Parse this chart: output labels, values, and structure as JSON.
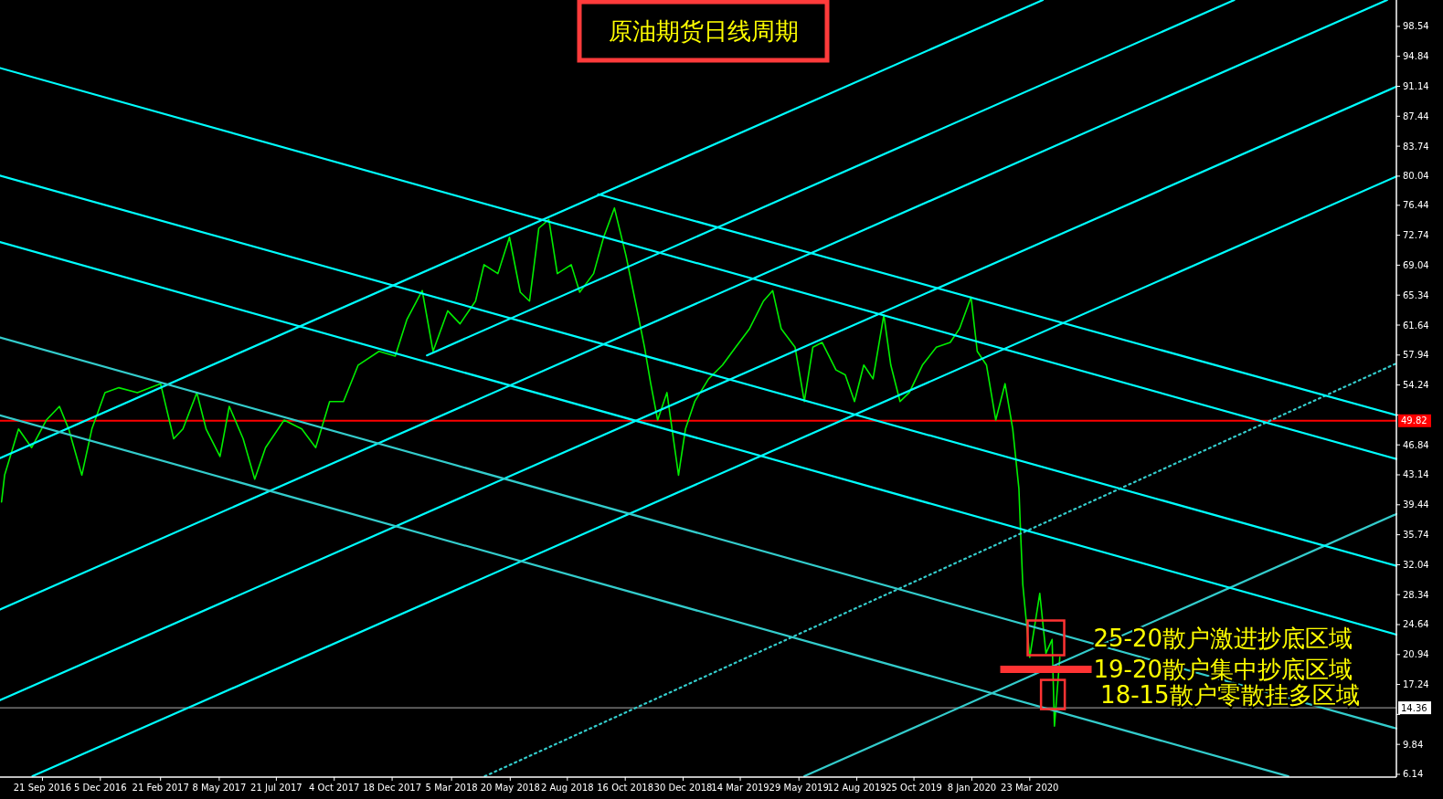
{
  "chart_data": {
    "type": "line",
    "title": "原油期货日线周期",
    "xlim": [
      "2016-07-28",
      "2021-07-11"
    ],
    "ylim": [
      5.8,
      101.8
    ],
    "xticks": [
      {
        "value": "2016-09-21",
        "label": "21 Sep 2016"
      },
      {
        "value": "2016-12-05",
        "label": "5 Dec 2016"
      },
      {
        "value": "2017-02-21",
        "label": "21 Feb 2017"
      },
      {
        "value": "2017-05-08",
        "label": "8 May 2017"
      },
      {
        "value": "2017-07-21",
        "label": "21 Jul 2017"
      },
      {
        "value": "2017-10-04",
        "label": "4 Oct 2017"
      },
      {
        "value": "2017-12-18",
        "label": "18 Dec 2017"
      },
      {
        "value": "2018-03-05",
        "label": "5 Mar 2018"
      },
      {
        "value": "2018-05-20",
        "label": "20 May 2018"
      },
      {
        "value": "2018-08-02",
        "label": "2 Aug 2018"
      },
      {
        "value": "2018-10-16",
        "label": "16 Oct 2018"
      },
      {
        "value": "2018-12-30",
        "label": "30 Dec 2018"
      },
      {
        "value": "2019-03-14",
        "label": "14 Mar 2019"
      },
      {
        "value": "2019-05-29",
        "label": "29 May 2019"
      },
      {
        "value": "2019-08-12",
        "label": "12 Aug 2019"
      },
      {
        "value": "2019-10-25",
        "label": "25 Oct 2019"
      },
      {
        "value": "2020-01-08",
        "label": "8 Jan 2020"
      },
      {
        "value": "2020-03-23",
        "label": "23 Mar 2020"
      }
    ],
    "yticks": [
      6.14,
      9.84,
      {
        "value": 13.54,
        "label": null
      },
      17.24,
      20.94,
      24.64,
      28.34,
      32.04,
      35.74,
      39.44,
      43.14,
      46.84,
      {
        "value": 50.54,
        "label": null
      },
      54.24,
      57.94,
      61.64,
      65.34,
      69.04,
      72.74,
      76.44,
      80.04,
      83.74,
      87.44,
      91.14,
      94.84,
      98.54
    ],
    "grid": false,
    "ref_lines": [
      {
        "axis": "y",
        "value": 49.82,
        "label": "49.82",
        "color": "#ff0000"
      },
      {
        "axis": "y",
        "value": 14.36,
        "label": "14.36",
        "color": "#b0b0b0"
      }
    ],
    "annotations": [
      {
        "text": "25-20散户激进抄底区域",
        "x": "2020-04-13",
        "y": 23.0
      },
      {
        "text": "19-20散户集中抄底区域",
        "x": "2020-04-13",
        "y": 19.1
      },
      {
        "text": "18-15散户零散挂多区域",
        "x": "2020-04-22",
        "y": 16.0
      }
    ],
    "series": [
      {
        "type": "line",
        "color": "#00ee00",
        "x": [
          "2016-07-30",
          "2016-08-03",
          "2016-08-21",
          "2016-09-07",
          "2016-09-26",
          "2016-10-13",
          "2016-10-25",
          "2016-11-11",
          "2016-11-24",
          "2016-12-11",
          "2016-12-29",
          "2017-01-22",
          "2017-02-21",
          "2017-03-10",
          "2017-03-22",
          "2017-04-09",
          "2017-04-21",
          "2017-05-09",
          "2017-05-21",
          "2017-06-08",
          "2017-06-23",
          "2017-07-07",
          "2017-07-31",
          "2017-08-23",
          "2017-09-10",
          "2017-09-28",
          "2017-10-16",
          "2017-11-04",
          "2017-12-01",
          "2017-12-22",
          "2018-01-06",
          "2018-01-26",
          "2018-02-09",
          "2018-02-28",
          "2018-03-16",
          "2018-04-05",
          "2018-04-16",
          "2018-05-04",
          "2018-05-19",
          "2018-06-02",
          "2018-06-14",
          "2018-06-26",
          "2018-07-09",
          "2018-07-20",
          "2018-08-07",
          "2018-08-18",
          "2018-09-05",
          "2018-09-18",
          "2018-10-02",
          "2018-10-17",
          "2018-10-29",
          "2018-11-10",
          "2018-11-18",
          "2018-11-27",
          "2018-12-09",
          "2018-12-24",
          "2019-01-02",
          "2019-01-14",
          "2019-02-01",
          "2019-02-19",
          "2019-03-08",
          "2019-03-26",
          "2019-04-13",
          "2019-04-25",
          "2019-05-06",
          "2019-05-24",
          "2019-06-05",
          "2019-06-16",
          "2019-06-28",
          "2019-07-16",
          "2019-07-28",
          "2019-08-09",
          "2019-08-21",
          "2019-09-02",
          "2019-09-16",
          "2019-09-25",
          "2019-10-07",
          "2019-10-19",
          "2019-11-05",
          "2019-11-23",
          "2019-12-11",
          "2019-12-23",
          "2020-01-07",
          "2020-01-15",
          "2020-01-27",
          "2020-02-08",
          "2020-02-20",
          "2020-03-01",
          "2020-03-09",
          "2020-03-11",
          "2020-03-14",
          "2020-03-23",
          "2020-04-05",
          "2020-04-13",
          "2020-04-21",
          "2020-04-24",
          "2020-05-01"
        ],
        "values": [
          39.8,
          43.1,
          48.8,
          46.5,
          49.9,
          51.6,
          48.8,
          43.1,
          48.8,
          53.3,
          53.9,
          53.3,
          54.4,
          47.6,
          48.8,
          53.3,
          48.8,
          45.4,
          51.6,
          47.6,
          42.6,
          46.5,
          49.9,
          48.8,
          46.5,
          52.2,
          52.2,
          56.7,
          58.4,
          57.8,
          62.3,
          65.9,
          58.4,
          63.4,
          61.8,
          64.6,
          69.1,
          68.0,
          72.5,
          65.7,
          64.6,
          73.6,
          74.7,
          68.0,
          69.1,
          65.7,
          68.0,
          72.5,
          76.1,
          70.2,
          64.6,
          58.9,
          54.4,
          49.9,
          53.3,
          43.1,
          48.8,
          52.2,
          55.0,
          56.7,
          58.9,
          61.2,
          64.6,
          65.9,
          61.2,
          58.9,
          52.2,
          58.9,
          59.5,
          56.1,
          55.5,
          52.2,
          56.7,
          55.0,
          62.9,
          56.7,
          52.2,
          53.3,
          56.7,
          58.9,
          59.5,
          61.2,
          65.1,
          58.4,
          56.7,
          49.9,
          54.4,
          48.8,
          41.4,
          36.4,
          29.6,
          20.6,
          28.5,
          21.1,
          22.8,
          12.1,
          20.6
        ]
      },
      {
        "type": "line",
        "color": "#00ffff",
        "x": [
          "2016-07-28",
          "2020-04-09"
        ],
        "values": [
          45.2,
          101.8
        ]
      },
      {
        "type": "line",
        "color": "#00ffff",
        "x": [
          "2018-02-01",
          "2020-12-13"
        ],
        "values": [
          57.9,
          101.8
        ]
      },
      {
        "type": "line",
        "color": "#00ffff",
        "x": [
          "2016-07-28",
          "2021-06-29"
        ],
        "values": [
          26.5,
          101.8
        ]
      },
      {
        "type": "line",
        "color": "#00ffff",
        "x": [
          "2016-07-28",
          "2021-07-11"
        ],
        "values": [
          15.3,
          91.1
        ]
      },
      {
        "type": "line",
        "color": "#00ffff",
        "x": [
          "2016-09-08",
          "2021-07-11"
        ],
        "values": [
          5.9,
          80.0
        ]
      },
      {
        "type": "line",
        "color": "#33cccc",
        "x": [
          "2019-06-05",
          "2021-07-11"
        ],
        "values": [
          5.9,
          38.3
        ]
      },
      {
        "type": "line",
        "color": "#33cccc",
        "line_style": "dotted",
        "x": [
          "2018-04-17",
          "2021-07-11"
        ],
        "values": [
          5.9,
          56.9
        ]
      },
      {
        "type": "line",
        "color": "#00ffff",
        "x": [
          "2016-07-28",
          "2021-07-11"
        ],
        "values": [
          93.4,
          45.1
        ]
      },
      {
        "type": "line",
        "color": "#00ffff",
        "x": [
          "2018-09-11",
          "2021-07-11"
        ],
        "values": [
          77.8,
          50.5
        ]
      },
      {
        "type": "line",
        "color": "#00ffff",
        "x": [
          "2016-07-28",
          "2021-07-11"
        ],
        "values": [
          80.1,
          31.9
        ]
      },
      {
        "type": "line",
        "color": "#00ffff",
        "x": [
          "2016-07-28",
          "2021-07-11"
        ],
        "values": [
          71.9,
          23.4
        ]
      },
      {
        "type": "line",
        "color": "#33cccc",
        "x": [
          "2016-07-28",
          "2021-07-11"
        ],
        "values": [
          60.1,
          11.8
        ]
      },
      {
        "type": "line",
        "color": "#33cccc",
        "x": [
          "2016-07-28",
          "2021-02-21"
        ],
        "values": [
          50.5,
          5.9
        ]
      }
    ]
  }
}
